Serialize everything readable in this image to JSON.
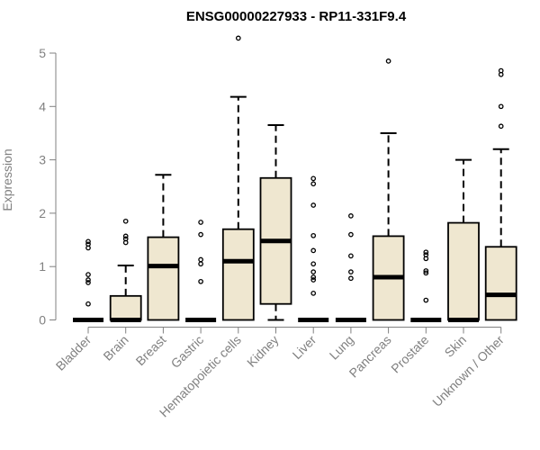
{
  "chart_data": {
    "type": "box",
    "title": "ENSG00000227933 - RP11-331F9.4",
    "ylabel": "Expression",
    "xlabel": "",
    "ylim": [
      0,
      5.35
    ],
    "yticks": [
      0,
      1,
      2,
      3,
      4,
      5
    ],
    "grid": false,
    "legend": "none",
    "box_fill": "#efe7d0",
    "box_stroke": "#000000",
    "axis_color": "#808080",
    "categories": [
      "Bladder",
      "Brain",
      "Breast",
      "Gastric",
      "Hematopoietic cells",
      "Kidney",
      "Liver",
      "Lung",
      "Pancreas",
      "Prostate",
      "Skin",
      "Unknown / Other"
    ],
    "boxes": [
      {
        "q1": 0,
        "median": 0,
        "q3": 0,
        "whisker_low": 0,
        "whisker_high": 0,
        "outliers": [
          0.3,
          0.7,
          0.75,
          0.85,
          1.35,
          1.42,
          1.47
        ]
      },
      {
        "q1": 0,
        "median": 0,
        "q3": 0.45,
        "whisker_low": 0,
        "whisker_high": 1.02,
        "outliers": [
          1.45,
          1.52,
          1.57,
          1.85
        ]
      },
      {
        "q1": 0,
        "median": 1.01,
        "q3": 1.55,
        "whisker_low": 0,
        "whisker_high": 2.72,
        "outliers": []
      },
      {
        "q1": 0,
        "median": 0,
        "q3": 0,
        "whisker_low": 0,
        "whisker_high": 0,
        "outliers": [
          0.72,
          1.05,
          1.13,
          1.6,
          1.83
        ]
      },
      {
        "q1": 0,
        "median": 1.1,
        "q3": 1.7,
        "whisker_low": 0,
        "whisker_high": 4.18,
        "outliers": [
          5.28
        ]
      },
      {
        "q1": 0.3,
        "median": 1.48,
        "q3": 2.66,
        "whisker_low": 0,
        "whisker_high": 3.65,
        "outliers": []
      },
      {
        "q1": 0,
        "median": 0,
        "q3": 0,
        "whisker_low": 0,
        "whisker_high": 0,
        "outliers": [
          0.5,
          0.75,
          0.8,
          0.9,
          1.05,
          1.3,
          1.58,
          2.15,
          2.55,
          2.65
        ]
      },
      {
        "q1": 0,
        "median": 0,
        "q3": 0,
        "whisker_low": 0,
        "whisker_high": 0,
        "outliers": [
          0.78,
          0.9,
          1.2,
          1.6,
          1.95
        ]
      },
      {
        "q1": 0,
        "median": 0.8,
        "q3": 1.57,
        "whisker_low": 0,
        "whisker_high": 3.5,
        "outliers": [
          4.85
        ]
      },
      {
        "q1": 0,
        "median": 0,
        "q3": 0,
        "whisker_low": 0,
        "whisker_high": 0,
        "outliers": [
          0.37,
          0.88,
          0.92,
          1.15,
          1.22,
          1.27
        ]
      },
      {
        "q1": 0,
        "median": 0,
        "q3": 1.82,
        "whisker_low": 0,
        "whisker_high": 3.0,
        "outliers": []
      },
      {
        "q1": 0,
        "median": 0.47,
        "q3": 1.37,
        "whisker_low": 0,
        "whisker_high": 3.2,
        "outliers": [
          3.63,
          4.0,
          4.6,
          4.67
        ]
      }
    ]
  }
}
